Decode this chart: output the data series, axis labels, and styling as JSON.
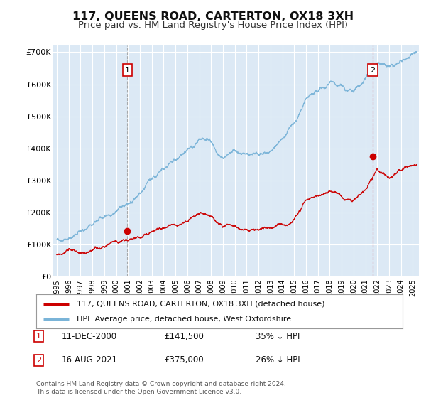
{
  "title": "117, QUEENS ROAD, CARTERTON, OX18 3XH",
  "subtitle": "Price paid vs. HM Land Registry's House Price Index (HPI)",
  "title_fontsize": 11.5,
  "subtitle_fontsize": 9.5,
  "background_color": "#ffffff",
  "plot_bg_color": "#dce9f5",
  "grid_color": "#ffffff",
  "hpi_color": "#7ab4d8",
  "price_color": "#cc0000",
  "ylim": [
    0,
    720000
  ],
  "yticks": [
    0,
    100000,
    200000,
    300000,
    400000,
    500000,
    600000,
    700000
  ],
  "ytick_labels": [
    "£0",
    "£100K",
    "£200K",
    "£300K",
    "£400K",
    "£500K",
    "£600K",
    "£700K"
  ],
  "xlim_start": 1994.7,
  "xlim_end": 2025.5,
  "xtick_years": [
    1995,
    1996,
    1997,
    1998,
    1999,
    2000,
    2001,
    2002,
    2003,
    2004,
    2005,
    2006,
    2007,
    2008,
    2009,
    2010,
    2011,
    2012,
    2013,
    2014,
    2015,
    2016,
    2017,
    2018,
    2019,
    2020,
    2021,
    2022,
    2023,
    2024,
    2025
  ],
  "sale1_date": 2000.95,
  "sale1_price": 141500,
  "sale1_label": "1",
  "sale2_date": 2021.62,
  "sale2_price": 375000,
  "sale2_label": "2",
  "legend_line1": "117, QUEENS ROAD, CARTERTON, OX18 3XH (detached house)",
  "legend_line2": "HPI: Average price, detached house, West Oxfordshire",
  "annotation1_date": "11-DEC-2000",
  "annotation1_price": "£141,500",
  "annotation1_pct": "35% ↓ HPI",
  "annotation2_date": "16-AUG-2021",
  "annotation2_price": "£375,000",
  "annotation2_pct": "26% ↓ HPI",
  "footer": "Contains HM Land Registry data © Crown copyright and database right 2024.\nThis data is licensed under the Open Government Licence v3.0."
}
